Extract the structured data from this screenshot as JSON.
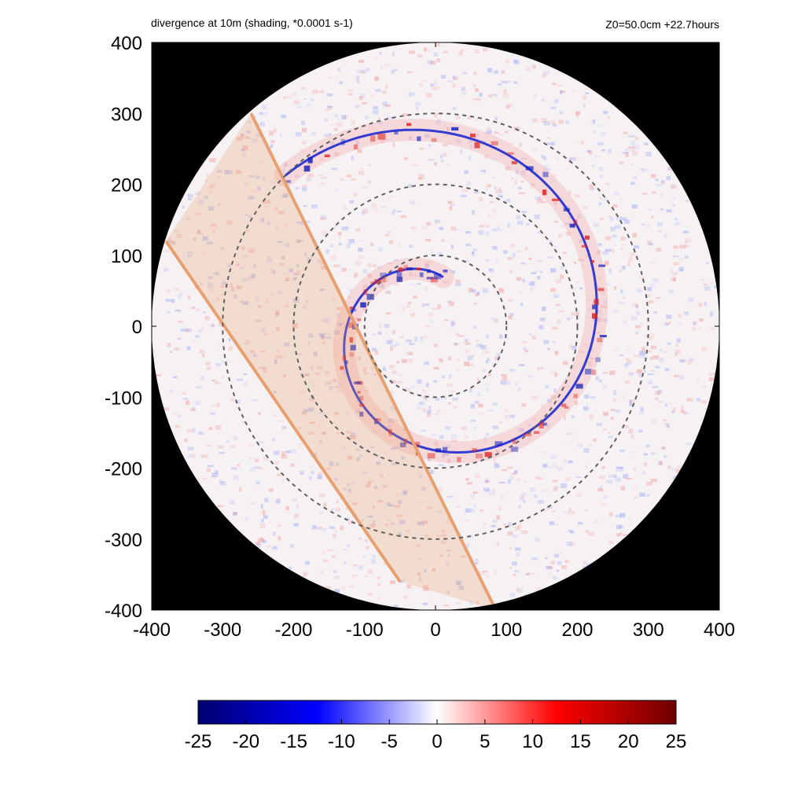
{
  "header": {
    "left_title": "divergence at 10m (shading, *0.0001 s-1)",
    "right_title": "Z0=50.0cm  +22.7hours"
  },
  "chart_data": {
    "type": "heatmap",
    "title": "divergence at 10m (shading, *0.0001 s-1)",
    "subtitle": "Z0=50.0cm  +22.7hours",
    "xlim": [
      -400,
      400
    ],
    "ylim": [
      -400,
      400
    ],
    "x_ticks": [
      -400,
      -300,
      -200,
      -100,
      0,
      100,
      200,
      300,
      400
    ],
    "y_ticks": [
      -400,
      -300,
      -200,
      -100,
      0,
      100,
      200,
      300,
      400
    ],
    "x_tick_labels": [
      "-400",
      "-300",
      "-200",
      "-100",
      "0",
      "100",
      "200",
      "300",
      "400"
    ],
    "y_tick_labels": [
      "400",
      "300",
      "200",
      "100",
      "0",
      "-100",
      "-200",
      "-300",
      "-400"
    ],
    "domain_radius": 400,
    "outside_domain_color": "#000000",
    "range_rings_radius": [
      100,
      200,
      300
    ],
    "range_ring_color": "#606060",
    "spiral_band": {
      "description": "spiral band of convergence (blue) and divergence (red)",
      "radius_at_start": 300,
      "radius_at_end": 70,
      "turns": 1.15
    },
    "shaded_swath": {
      "color": "#e8a070",
      "edge1": [
        [
          -260,
          300
        ],
        [
          85,
          -400
        ]
      ],
      "edge2": [
        [
          -380,
          120
        ],
        [
          -50,
          -360
        ]
      ]
    },
    "colorbar": {
      "min": -25,
      "max": 25,
      "ticks": [
        -25,
        -20,
        -15,
        -10,
        -5,
        0,
        5,
        10,
        15,
        20,
        25
      ],
      "tick_labels": [
        "-25",
        "-20",
        "-15",
        "-10",
        "-5",
        "0",
        "5",
        "10",
        "15",
        "20",
        "25"
      ],
      "colors": [
        "#00006e",
        "#0000ff",
        "#ffffff",
        "#ff0000",
        "#6e0000"
      ]
    }
  }
}
